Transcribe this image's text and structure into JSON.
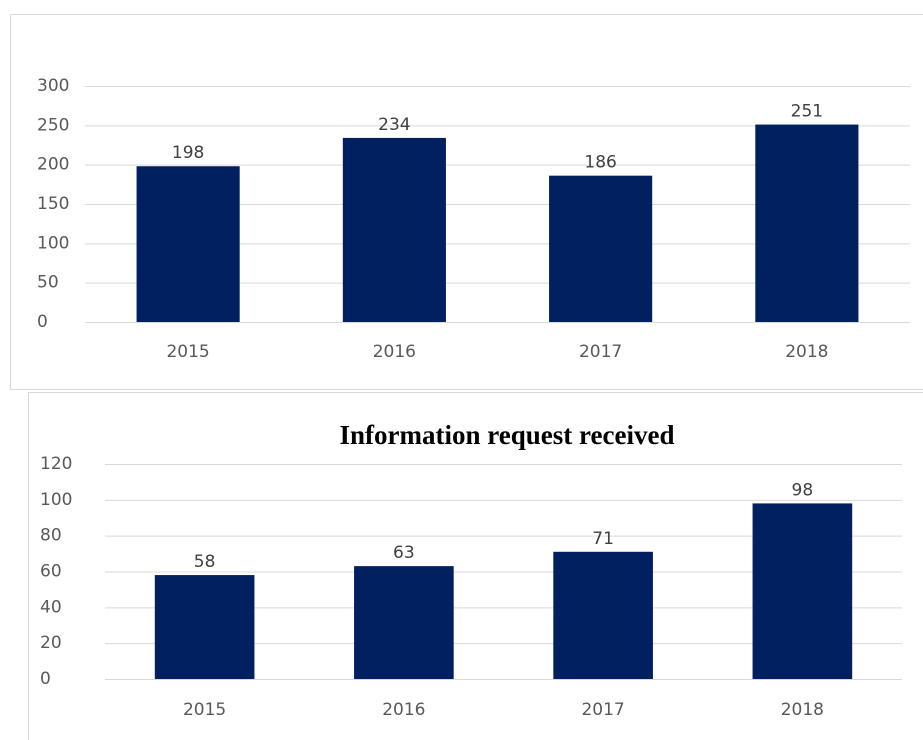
{
  "chart_data": [
    {
      "type": "bar",
      "categories": [
        "2015",
        "2016",
        "2017",
        "2018"
      ],
      "values": [
        198,
        234,
        186,
        251
      ],
      "color": "#002060",
      "ylim": [
        0,
        300
      ],
      "yticks": [
        0,
        50,
        100,
        150,
        200,
        250,
        300
      ],
      "grid": true
    },
    {
      "type": "bar",
      "title": "Information request received",
      "categories": [
        "2015",
        "2016",
        "2017",
        "2018"
      ],
      "values": [
        58,
        63,
        71,
        98
      ],
      "color": "#002060",
      "ylim": [
        0,
        120
      ],
      "yticks": [
        0,
        20,
        40,
        60,
        80,
        100,
        120
      ],
      "grid": true
    }
  ]
}
